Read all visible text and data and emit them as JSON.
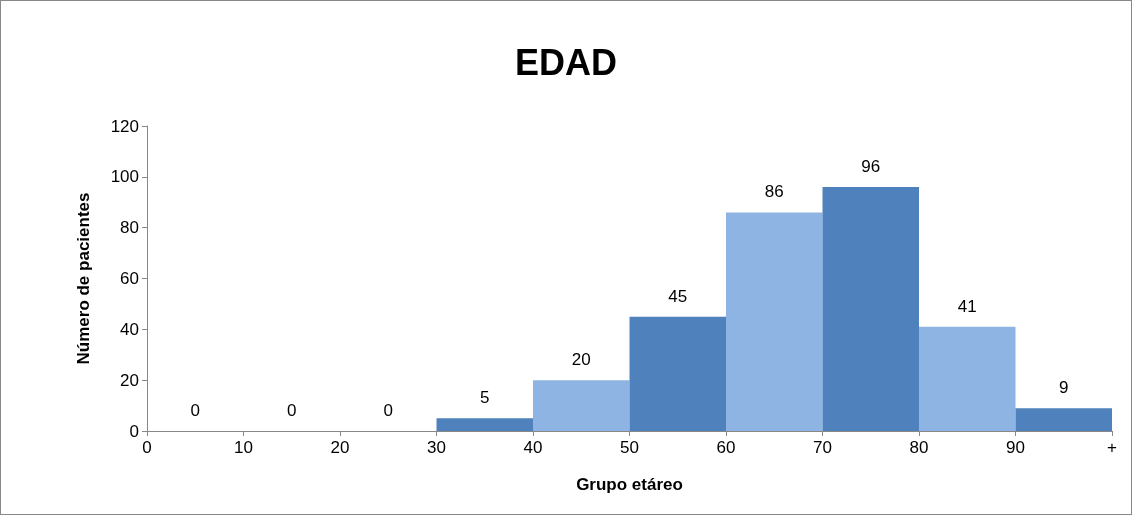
{
  "chart_data": {
    "type": "histogram",
    "title": "EDAD",
    "xlabel": "Grupo etáreo",
    "ylabel": "Número de pacientes",
    "bins": [
      0,
      10,
      20,
      30,
      40,
      50,
      60,
      70,
      80,
      90,
      100
    ],
    "values": [
      0,
      0,
      0,
      5,
      20,
      45,
      86,
      96,
      41,
      9
    ],
    "colors": [
      "#8eb4e3",
      "#4f81bd",
      "#8eb4e3",
      "#4f81bd",
      "#8eb4e3",
      "#4f81bd",
      "#8eb4e3",
      "#4f81bd",
      "#8eb4e3",
      "#4f81bd"
    ],
    "xlim": [
      0,
      100
    ],
    "xticks": [
      0,
      10,
      20,
      30,
      40,
      50,
      60,
      70,
      80,
      90,
      {
        "value": 100,
        "label": "+"
      }
    ],
    "ylim": [
      0,
      120
    ],
    "yticks": [
      0,
      20,
      40,
      60,
      80,
      100,
      120
    ],
    "data_labels": true,
    "grid": false
  }
}
